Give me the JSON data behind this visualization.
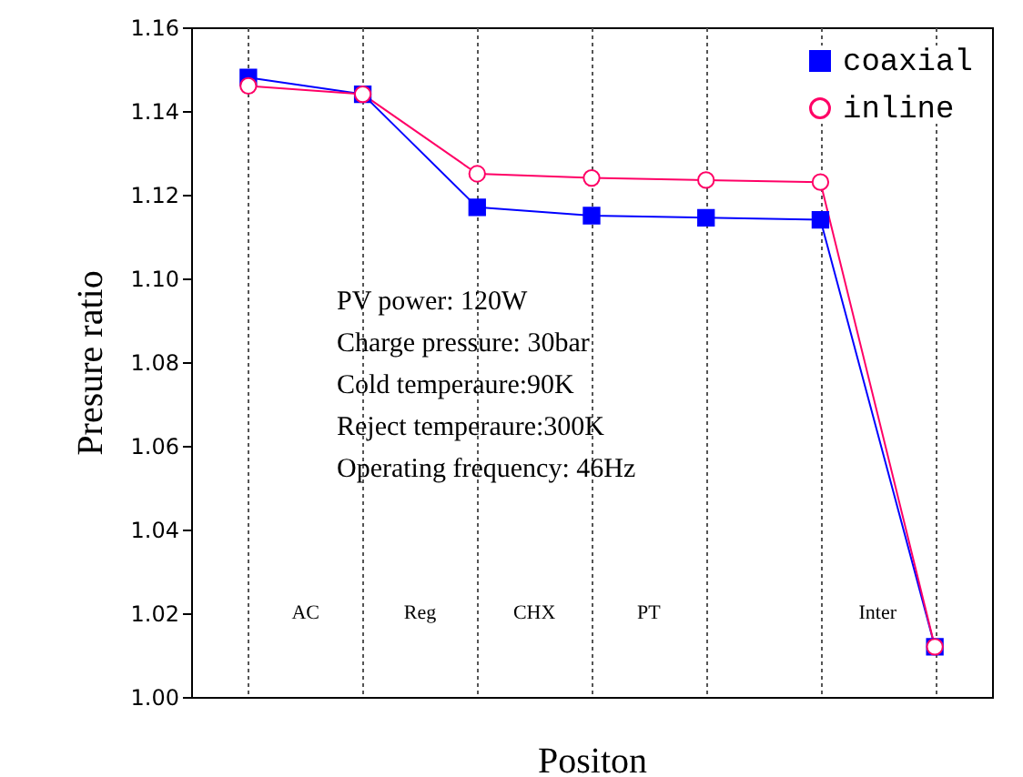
{
  "chart_data": {
    "type": "line",
    "xlabel": "Positon",
    "ylabel": "Presure ratio",
    "categories": [
      null,
      null,
      null,
      null,
      null,
      null,
      null
    ],
    "series": [
      {
        "name": "coaxial",
        "color": "#0000ff",
        "marker": "square",
        "values": [
          1.148,
          1.144,
          1.117,
          1.115,
          1.1145,
          1.114,
          1.012
        ]
      },
      {
        "name": "inline",
        "color": "#ff0066",
        "marker": "circle",
        "values": [
          1.146,
          1.144,
          1.125,
          1.124,
          1.1235,
          1.123,
          1.012
        ]
      }
    ],
    "ylim": [
      1.0,
      1.16
    ],
    "yticks": [
      {
        "value": 1.0,
        "label": "1.00"
      },
      {
        "value": 1.02,
        "label": "1.02"
      },
      {
        "value": 1.04,
        "label": "1.04"
      },
      {
        "value": 1.06,
        "label": "1.06"
      },
      {
        "value": 1.08,
        "label": "1.08"
      },
      {
        "value": 1.1,
        "label": "1.10"
      },
      {
        "value": 1.12,
        "label": "1.12"
      },
      {
        "value": 1.14,
        "label": "1.14"
      },
      {
        "value": 1.16,
        "label": "1.16"
      }
    ],
    "grid": "x",
    "legend": "top right",
    "annotations": [
      "PV power: 120W",
      "Charge pressure: 30bar",
      "Cold temperaure:90K",
      "Reject temperaure:300K",
      "Operating frequency: 46Hz",
      "AC",
      "Reg",
      "CHX",
      "PT",
      "Inter"
    ]
  }
}
